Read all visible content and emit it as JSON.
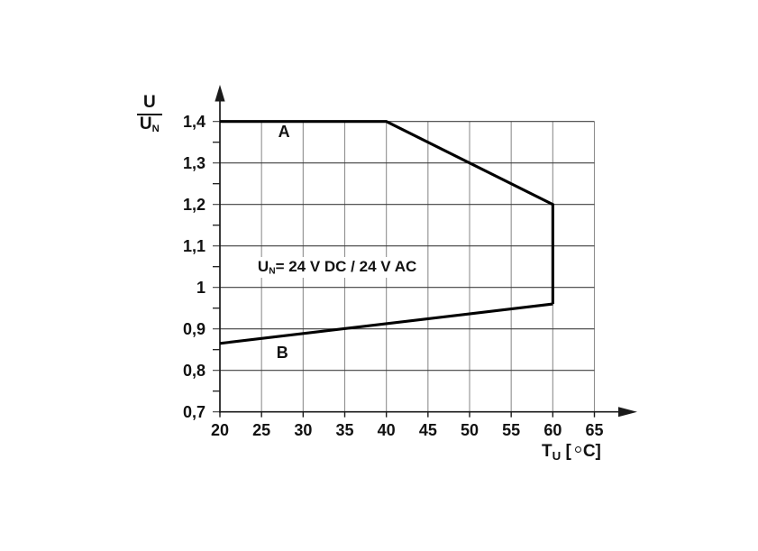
{
  "figure": {
    "background": "#ffffff",
    "text_color": "#111111",
    "curve_color": "#000000",
    "grid_h_color": "#3f3f3f",
    "grid_v_color": "#8f8f8f",
    "axis_color": "#1a1a1a"
  },
  "chart_data": {
    "type": "line",
    "title": "",
    "x_axis": {
      "label_main": "T",
      "label_sub": "U",
      "label_unit_open": "[",
      "label_degree": "°",
      "label_unit_close": "C]",
      "min": 20,
      "max": 65,
      "ticks": [
        20,
        25,
        30,
        35,
        40,
        45,
        50,
        55,
        60,
        65
      ]
    },
    "y_axis": {
      "label_numerator": "U",
      "label_denominator_main": "U",
      "label_denominator_sub": "N",
      "min": 0.7,
      "max": 1.4,
      "ticks": [
        {
          "value": 0.7,
          "label": "0,7"
        },
        {
          "value": 0.8,
          "label": "0,8"
        },
        {
          "value": 0.9,
          "label": "0,9"
        },
        {
          "value": 1.0,
          "label": "1"
        },
        {
          "value": 1.1,
          "label": "1,1"
        },
        {
          "value": 1.2,
          "label": "1,2"
        },
        {
          "value": 1.3,
          "label": "1,3"
        },
        {
          "value": 1.4,
          "label": "1,4"
        }
      ],
      "minor_tick_values": [
        0.75,
        0.85,
        0.95,
        1.05,
        1.15,
        1.25,
        1.35
      ]
    },
    "grid": true,
    "legend_position": "inline",
    "series": [
      {
        "name": "A",
        "points": [
          [
            20,
            1.4
          ],
          [
            40,
            1.4
          ],
          [
            60,
            1.2
          ],
          [
            60,
            0.96
          ]
        ],
        "label_pos": [
          27.7,
          1.375
        ]
      },
      {
        "name": "B",
        "points": [
          [
            20,
            0.865
          ],
          [
            60,
            0.96
          ]
        ],
        "label_pos": [
          27.5,
          0.843
        ]
      }
    ],
    "annotation": {
      "sym_main": "U",
      "sym_sub": "N",
      "text": "= 24 V DC / 24 V AC",
      "pos": [
        24.0,
        1.073
      ]
    }
  }
}
